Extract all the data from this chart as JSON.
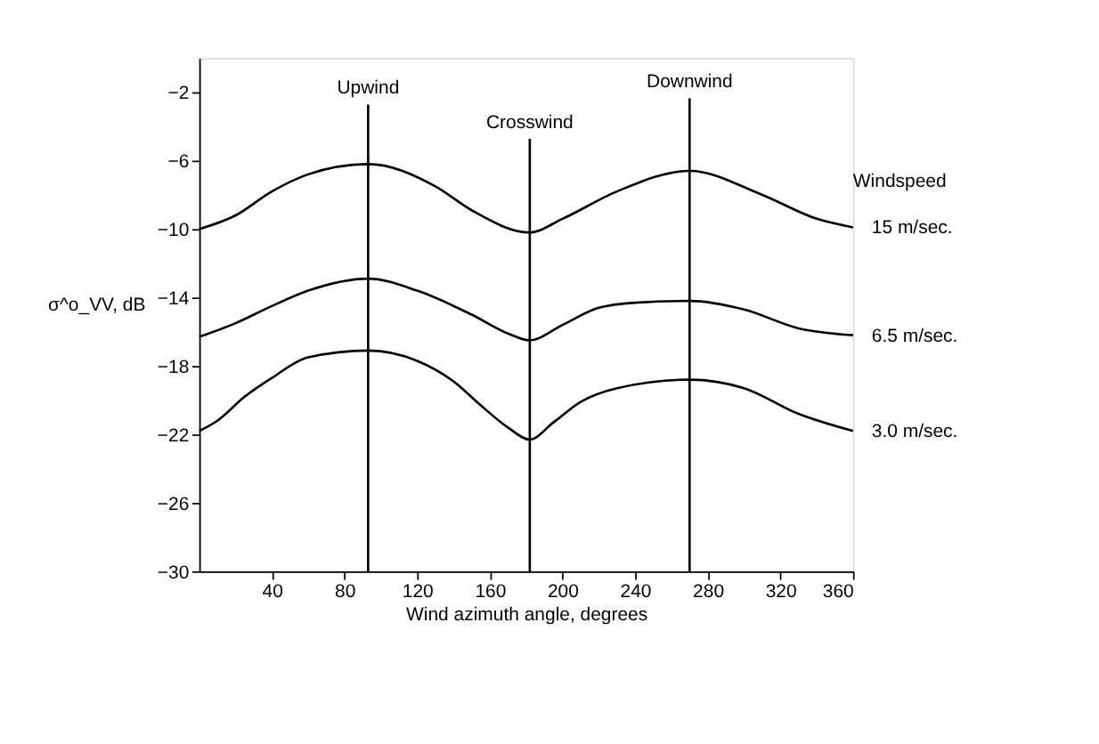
{
  "chart_data": {
    "type": "line",
    "xlabel": "Wind azimuth angle, degrees",
    "ylabel": "σ^o_VV, dB",
    "legend_title": "Windspeed",
    "xlim": [
      0,
      360
    ],
    "xticks": [
      40,
      80,
      120,
      160,
      200,
      240,
      280,
      320,
      360
    ],
    "ylim": [
      -30,
      0
    ],
    "yticks": [
      -2,
      -6,
      -10,
      -14,
      -18,
      -22,
      -26,
      -30
    ],
    "grid": false,
    "legend": false,
    "marker": "none",
    "line_style": "solid",
    "series": [
      {
        "name": "15 m/sec.",
        "color": "#000000",
        "x": [
          0,
          20,
          40,
          60,
          93,
          130,
          150,
          182,
          200,
          230,
          270,
          310,
          340,
          360
        ],
        "values": [
          -10,
          -9.2,
          -7.8,
          -6.8,
          -6.2,
          -7.5,
          -8.9,
          -10.2,
          -9.4,
          -7.8,
          -6.6,
          -8.0,
          -9.4,
          -9.9
        ]
      },
      {
        "name": "6.5 m/sec.",
        "color": "#000000",
        "x": [
          0,
          20,
          40,
          60,
          93,
          120,
          150,
          170,
          182,
          200,
          220,
          240,
          270,
          300,
          330,
          360
        ],
        "values": [
          -16.3,
          -15.5,
          -14.5,
          -13.6,
          -12.9,
          -13.6,
          -15,
          -16.1,
          -16.5,
          -15.6,
          -14.6,
          -14.3,
          -14.2,
          -14.7,
          -15.8,
          -16.2
        ]
      },
      {
        "name": "3.0 m/sec.",
        "color": "#000000",
        "x": [
          0,
          10,
          25,
          40,
          60,
          93,
          120,
          140,
          155,
          170,
          182,
          195,
          210,
          230,
          270,
          300,
          330,
          360
        ],
        "values": [
          -21.8,
          -21.2,
          -19.8,
          -18.7,
          -17.5,
          -17.1,
          -17.7,
          -18.9,
          -20.3,
          -21.6,
          -22.3,
          -21.3,
          -20.1,
          -19.3,
          -18.8,
          -19.3,
          -20.8,
          -21.8
        ]
      }
    ],
    "ref_lines": [
      {
        "axis": "x",
        "value": 93,
        "label": "Upwind",
        "color": "#000000"
      },
      {
        "axis": "x",
        "value": 182,
        "label": "Crosswind",
        "color": "#000000"
      },
      {
        "axis": "x",
        "value": 270,
        "label": "Downwind",
        "color": "#000000"
      }
    ]
  }
}
